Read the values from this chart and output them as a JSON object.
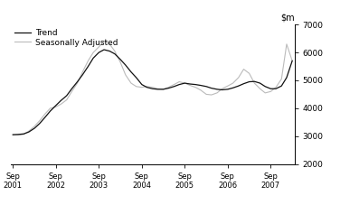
{
  "ylim": [
    2000,
    7000
  ],
  "yticks": [
    2000,
    3000,
    4000,
    5000,
    6000,
    7000
  ],
  "legend_entries": [
    "Trend",
    "Seasonally Adjusted"
  ],
  "trend_color": "#111111",
  "seasonal_color": "#bbbbbb",
  "background_color": "#ffffff",
  "trend": {
    "x": [
      0.0,
      0.12,
      0.25,
      0.37,
      0.5,
      0.62,
      0.75,
      0.87,
      1.0,
      1.12,
      1.25,
      1.37,
      1.5,
      1.62,
      1.75,
      1.87,
      2.0,
      2.12,
      2.25,
      2.37,
      2.5,
      2.62,
      2.75,
      2.87,
      3.0,
      3.12,
      3.25,
      3.37,
      3.5,
      3.62,
      3.75,
      3.87,
      4.0,
      4.12,
      4.25,
      4.37,
      4.5,
      4.62,
      4.75,
      4.87,
      5.0,
      5.12,
      5.25,
      5.37,
      5.5,
      5.62,
      5.75,
      5.87,
      6.0,
      6.12,
      6.25,
      6.37,
      6.5
    ],
    "y": [
      3050,
      3060,
      3080,
      3150,
      3280,
      3450,
      3680,
      3900,
      4100,
      4280,
      4450,
      4700,
      4950,
      5200,
      5500,
      5800,
      6000,
      6100,
      6050,
      5950,
      5750,
      5550,
      5300,
      5100,
      4850,
      4750,
      4700,
      4680,
      4680,
      4720,
      4780,
      4850,
      4900,
      4870,
      4850,
      4820,
      4780,
      4720,
      4680,
      4660,
      4680,
      4730,
      4800,
      4880,
      4950,
      4960,
      4900,
      4780,
      4700,
      4700,
      4800,
      5100,
      5700
    ]
  },
  "seasonal": {
    "x": [
      0.0,
      0.12,
      0.25,
      0.37,
      0.5,
      0.62,
      0.75,
      0.87,
      1.0,
      1.12,
      1.25,
      1.37,
      1.5,
      1.62,
      1.75,
      1.87,
      2.0,
      2.12,
      2.25,
      2.37,
      2.5,
      2.62,
      2.75,
      2.87,
      3.0,
      3.12,
      3.25,
      3.37,
      3.5,
      3.62,
      3.75,
      3.87,
      4.0,
      4.12,
      4.25,
      4.37,
      4.5,
      4.62,
      4.75,
      4.87,
      5.0,
      5.12,
      5.25,
      5.37,
      5.5,
      5.62,
      5.75,
      5.87,
      6.0,
      6.12,
      6.25,
      6.37,
      6.5
    ],
    "y": [
      3050,
      3040,
      3060,
      3180,
      3350,
      3550,
      3800,
      4000,
      4050,
      4150,
      4300,
      4600,
      4900,
      5300,
      5700,
      6000,
      6200,
      6400,
      6300,
      6050,
      5650,
      5200,
      4900,
      4780,
      4750,
      4780,
      4750,
      4700,
      4680,
      4750,
      4850,
      4950,
      4900,
      4820,
      4750,
      4650,
      4500,
      4480,
      4550,
      4700,
      4800,
      4900,
      5100,
      5400,
      5250,
      4900,
      4700,
      4550,
      4600,
      4750,
      5050,
      6300,
      5700
    ]
  },
  "xtick_values": [
    0,
    1,
    2,
    3,
    4,
    5,
    6
  ],
  "xtick_labels": [
    "Sep\n2001",
    "Sep\n2002",
    "Sep\n2003",
    "Sep\n2004",
    "Sep\n2005",
    "Sep\n2006",
    "Sep\n2007"
  ],
  "xmin": -0.05,
  "xmax": 6.55
}
